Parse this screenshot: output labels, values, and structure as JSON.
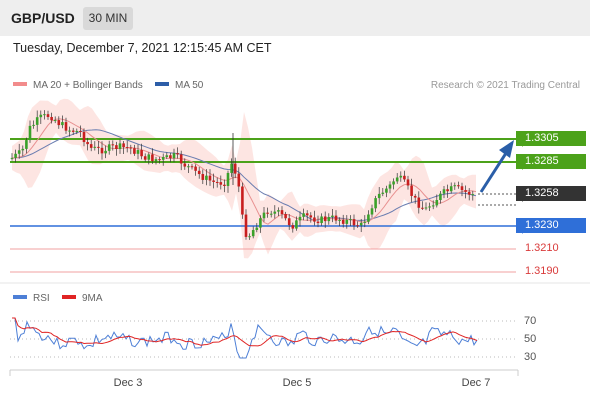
{
  "header": {
    "pair": "GBP/USD",
    "timeframe": "30 MIN"
  },
  "date_line": "Tuesday, December 7, 2021 12:15:45 AM CET",
  "legend": {
    "ma20": {
      "label": "MA 20 + Bollinger Bands",
      "color": "#f28c8c"
    },
    "ma50": {
      "label": "MA 50",
      "color": "#2d5ea8"
    }
  },
  "credit": "Research © 2021 Trading Central",
  "price_levels": [
    {
      "value": "1.3305",
      "role": "resistance",
      "color": "#4ca21a",
      "style": "filled"
    },
    {
      "value": "1.3285",
      "role": "resistance",
      "color": "#4ca21a",
      "style": "filled"
    },
    {
      "value": "1.3258",
      "role": "last-price",
      "color": "#333333",
      "style": "filled"
    },
    {
      "value": "1.3230",
      "role": "pivot",
      "color": "#2f6fd8",
      "style": "filled"
    },
    {
      "value": "1.3210",
      "role": "support",
      "color": "#d93a3a",
      "style": "text"
    },
    {
      "value": "1.3190",
      "role": "support",
      "color": "#d93a3a",
      "style": "text"
    }
  ],
  "rsi_panel": {
    "legend": {
      "rsi": {
        "label": "RSI",
        "color": "#4d7fd6"
      },
      "ma9": {
        "label": "9MA",
        "color": "#e02424"
      }
    },
    "ticks": [
      "70",
      "50",
      "30"
    ]
  },
  "x_axis": {
    "ticks": [
      "Dec 3",
      "Dec 5",
      "Dec 7"
    ]
  },
  "colors": {
    "bull_candle": "#3aa12a",
    "bear_candle": "#c81e1e",
    "bollinger_fill": "#fde0dd",
    "forecast_arrow": "#2a5ea8"
  }
}
